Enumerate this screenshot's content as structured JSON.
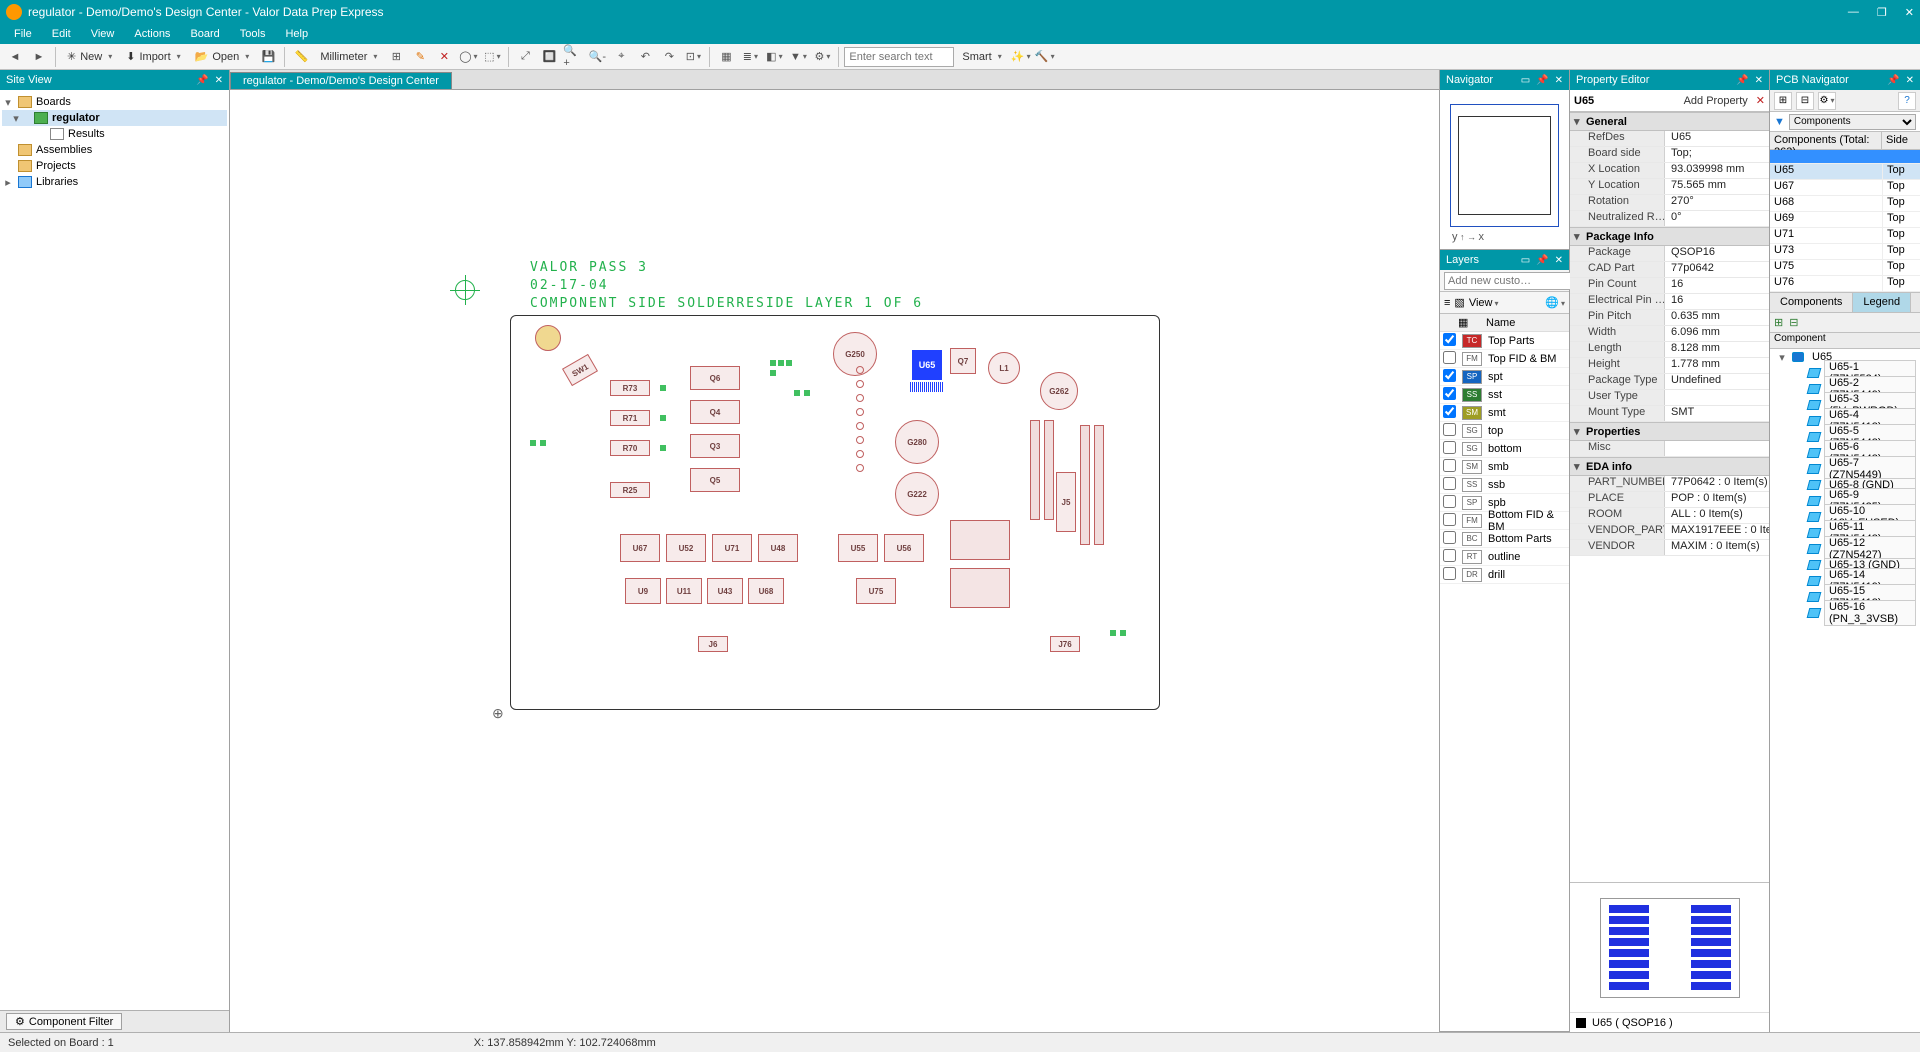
{
  "window": {
    "title": "regulator - Demo/Demo's Design Center - Valor Data Prep Express",
    "min": "—",
    "max": "❐",
    "close": "✕"
  },
  "menus": [
    "File",
    "Edit",
    "View",
    "Actions",
    "Board",
    "Tools",
    "Help"
  ],
  "toolbar": {
    "new": "New",
    "import": "Import",
    "open": "Open",
    "units": "Millimeter",
    "search_placeholder": "Enter search text",
    "smart": "Smart"
  },
  "siteview": {
    "title": "Site View",
    "tree": {
      "boards": "Boards",
      "regulator": "regulator",
      "results": "Results",
      "assemblies": "Assemblies",
      "projects": "Projects",
      "libraries": "Libraries"
    },
    "component_filter": "Component Filter"
  },
  "tab": "regulator - Demo/Demo's Design Center",
  "canvas_text": {
    "l1": "VALOR  PASS 3",
    "l2": "02-17-04",
    "l3": "COMPONENT SIDE  SOLDERRESIDE  LAYER 1 OF 6"
  },
  "components": {
    "u65": "U65",
    "q6": "Q6",
    "q4": "Q4",
    "q3": "Q3",
    "q5": "Q5",
    "g250": "G250",
    "g280": "G280",
    "g222": "G222",
    "g262": "G262",
    "q7": "Q7",
    "l1": "L1",
    "j5": "J5",
    "sw1": "SW1",
    "r73": "R73",
    "r71": "R71",
    "r70": "R70",
    "r25": "R25",
    "u67": "U67",
    "u52": "U52",
    "u71": "U71",
    "u48": "U48",
    "u55": "U55",
    "u56": "U56",
    "u9": "U9",
    "u11": "U11",
    "u43": "U43",
    "u68": "U68",
    "u75": "U75",
    "j6": "J6",
    "j76": "J76"
  },
  "navigator": {
    "title": "Navigator",
    "axis_x": "x",
    "axis_y": "y"
  },
  "layers": {
    "title": "Layers",
    "add_placeholder": "Add new custo…",
    "view_label": "View",
    "name_hdr": "Name",
    "rows": [
      {
        "code": "TC",
        "color": "#c62828",
        "name": "Top Parts",
        "checked": true
      },
      {
        "code": "FM",
        "color": "#ffffff",
        "name": "Top FID & BM",
        "checked": false,
        "fg": "#555"
      },
      {
        "code": "SP",
        "color": "#1565c0",
        "name": "spt",
        "checked": true
      },
      {
        "code": "SS",
        "color": "#2e7d32",
        "name": "sst",
        "checked": true
      },
      {
        "code": "SM",
        "color": "#9e9d24",
        "name": "smt",
        "checked": true
      },
      {
        "code": "SG",
        "color": "#ffffff",
        "name": "top",
        "checked": false,
        "fg": "#555"
      },
      {
        "code": "SG",
        "color": "#ffffff",
        "name": "bottom",
        "checked": false,
        "fg": "#555"
      },
      {
        "code": "SM",
        "color": "#ffffff",
        "name": "smb",
        "checked": false,
        "fg": "#555"
      },
      {
        "code": "SS",
        "color": "#ffffff",
        "name": "ssb",
        "checked": false,
        "fg": "#555"
      },
      {
        "code": "SP",
        "color": "#ffffff",
        "name": "spb",
        "checked": false,
        "fg": "#555"
      },
      {
        "code": "FM",
        "color": "#ffffff",
        "name": "Bottom FID & BM",
        "checked": false,
        "fg": "#555"
      },
      {
        "code": "BC",
        "color": "#ffffff",
        "name": "Bottom Parts",
        "checked": false,
        "fg": "#555"
      },
      {
        "code": "RT",
        "color": "#ffffff",
        "name": "outline",
        "checked": false,
        "fg": "#555"
      },
      {
        "code": "DR",
        "color": "#ffffff",
        "name": "drill",
        "checked": false,
        "fg": "#555"
      }
    ]
  },
  "propeditor": {
    "title": "Property Editor",
    "component": "U65",
    "add_property": "Add Property",
    "delete": "✕",
    "groups": {
      "general": "General",
      "package_info": "Package Info",
      "properties": "Properties",
      "eda_info": "EDA info"
    },
    "general": [
      {
        "k": "RefDes",
        "v": "U65"
      },
      {
        "k": "Board side",
        "v": "Top;"
      },
      {
        "k": "X Location",
        "v": "93.039998 mm"
      },
      {
        "k": "Y Location",
        "v": "75.565 mm"
      },
      {
        "k": "Rotation",
        "v": "270°"
      },
      {
        "k": "Neutralized R…",
        "v": "0°"
      }
    ],
    "package": [
      {
        "k": "Package",
        "v": "QSOP16"
      },
      {
        "k": "CAD Part",
        "v": "77p0642"
      },
      {
        "k": "Pin Count",
        "v": "16"
      },
      {
        "k": "Electrical Pin …",
        "v": "16"
      },
      {
        "k": "Pin Pitch",
        "v": "0.635 mm"
      },
      {
        "k": "Width",
        "v": "6.096 mm"
      },
      {
        "k": "Length",
        "v": "8.128 mm"
      },
      {
        "k": "Height",
        "v": "1.778 mm"
      },
      {
        "k": "Package Type",
        "v": "Undefined"
      },
      {
        "k": "User Type",
        "v": ""
      },
      {
        "k": "Mount Type",
        "v": "SMT"
      }
    ],
    "properties": [
      {
        "k": "Misc",
        "v": ""
      }
    ],
    "eda": [
      {
        "k": "PART_NUMBER",
        "v": "77P0642 : 0 Item(s)"
      },
      {
        "k": "PLACE",
        "v": "POP : 0 Item(s)"
      },
      {
        "k": "ROOM",
        "v": "ALL : 0 Item(s)"
      },
      {
        "k": "VENDOR_PART",
        "v": "MAX1917EEE : 0 Item…"
      },
      {
        "k": "VENDOR",
        "v": "MAXIM : 0 Item(s)"
      }
    ],
    "pkg_label": "U65 ( QSOP16 )",
    "pin_color": "#2030e0"
  },
  "pcbnav": {
    "title": "PCB Navigator",
    "filter_label": "Components",
    "count_label": "Components (Total: 263)",
    "side_hdr": "Side",
    "rows": [
      {
        "n": "U65",
        "s": "Top",
        "sel": true
      },
      {
        "n": "U67",
        "s": "Top"
      },
      {
        "n": "U68",
        "s": "Top"
      },
      {
        "n": "U69",
        "s": "Top"
      },
      {
        "n": "U71",
        "s": "Top"
      },
      {
        "n": "U73",
        "s": "Top"
      },
      {
        "n": "U75",
        "s": "Top"
      },
      {
        "n": "U76",
        "s": "Top"
      }
    ],
    "tabs": {
      "components": "Components",
      "legend": "Legend"
    },
    "pin_hdr": "Component",
    "root": "U65",
    "pins": [
      "U65-1   (Z7N5524)",
      "U65-2   (Z7N5449)",
      "U65-3   (5V_PWRGD)",
      "U65-4   (Z7N5418)",
      "U65-5   (Z7N5448)",
      "U65-6   (Z7N5448)",
      "U65-7   (Z7N5449)",
      "U65-8   (GND)",
      "U65-9   (Z7N5425)",
      "U65-10  (12V_FUSED)",
      "U65-11  (Z7N5448)",
      "U65-12  (Z7N5427)",
      "U65-13  (GND)",
      "U65-14  (Z7N5419)",
      "U65-15  (Z7N5418)",
      "U65-16  (PN_3_3VSB)"
    ]
  },
  "status": {
    "selected": "Selected on Board : 1",
    "coords": "X: 137.858942mm Y: 102.724068mm"
  }
}
